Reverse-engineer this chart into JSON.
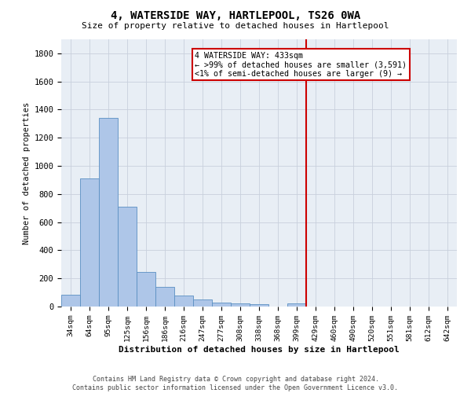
{
  "title": "4, WATERSIDE WAY, HARTLEPOOL, TS26 0WA",
  "subtitle": "Size of property relative to detached houses in Hartlepool",
  "xlabel": "Distribution of detached houses by size in Hartlepool",
  "ylabel": "Number of detached properties",
  "footer_line1": "Contains HM Land Registry data © Crown copyright and database right 2024.",
  "footer_line2": "Contains public sector information licensed under the Open Government Licence v3.0.",
  "bar_labels": [
    "34sqm",
    "64sqm",
    "95sqm",
    "125sqm",
    "156sqm",
    "186sqm",
    "216sqm",
    "247sqm",
    "277sqm",
    "308sqm",
    "338sqm",
    "368sqm",
    "399sqm",
    "429sqm",
    "460sqm",
    "490sqm",
    "520sqm",
    "551sqm",
    "581sqm",
    "612sqm",
    "642sqm"
  ],
  "bar_values": [
    85,
    910,
    1340,
    710,
    248,
    140,
    80,
    52,
    28,
    22,
    17,
    0,
    20,
    0,
    0,
    0,
    0,
    0,
    0,
    0,
    0
  ],
  "bar_color": "#aec6e8",
  "bar_edge_color": "#5a8fc2",
  "grid_color": "#c8d0dc",
  "bg_color": "#e8eef5",
  "vline_color": "#cc0000",
  "vline_x": 12.5,
  "annotation_text": "4 WATERSIDE WAY: 433sqm\n← >99% of detached houses are smaller (3,591)\n<1% of semi-detached houses are larger (9) →",
  "ylim": [
    0,
    1900
  ],
  "yticks": [
    0,
    200,
    400,
    600,
    800,
    1000,
    1200,
    1400,
    1600,
    1800
  ]
}
